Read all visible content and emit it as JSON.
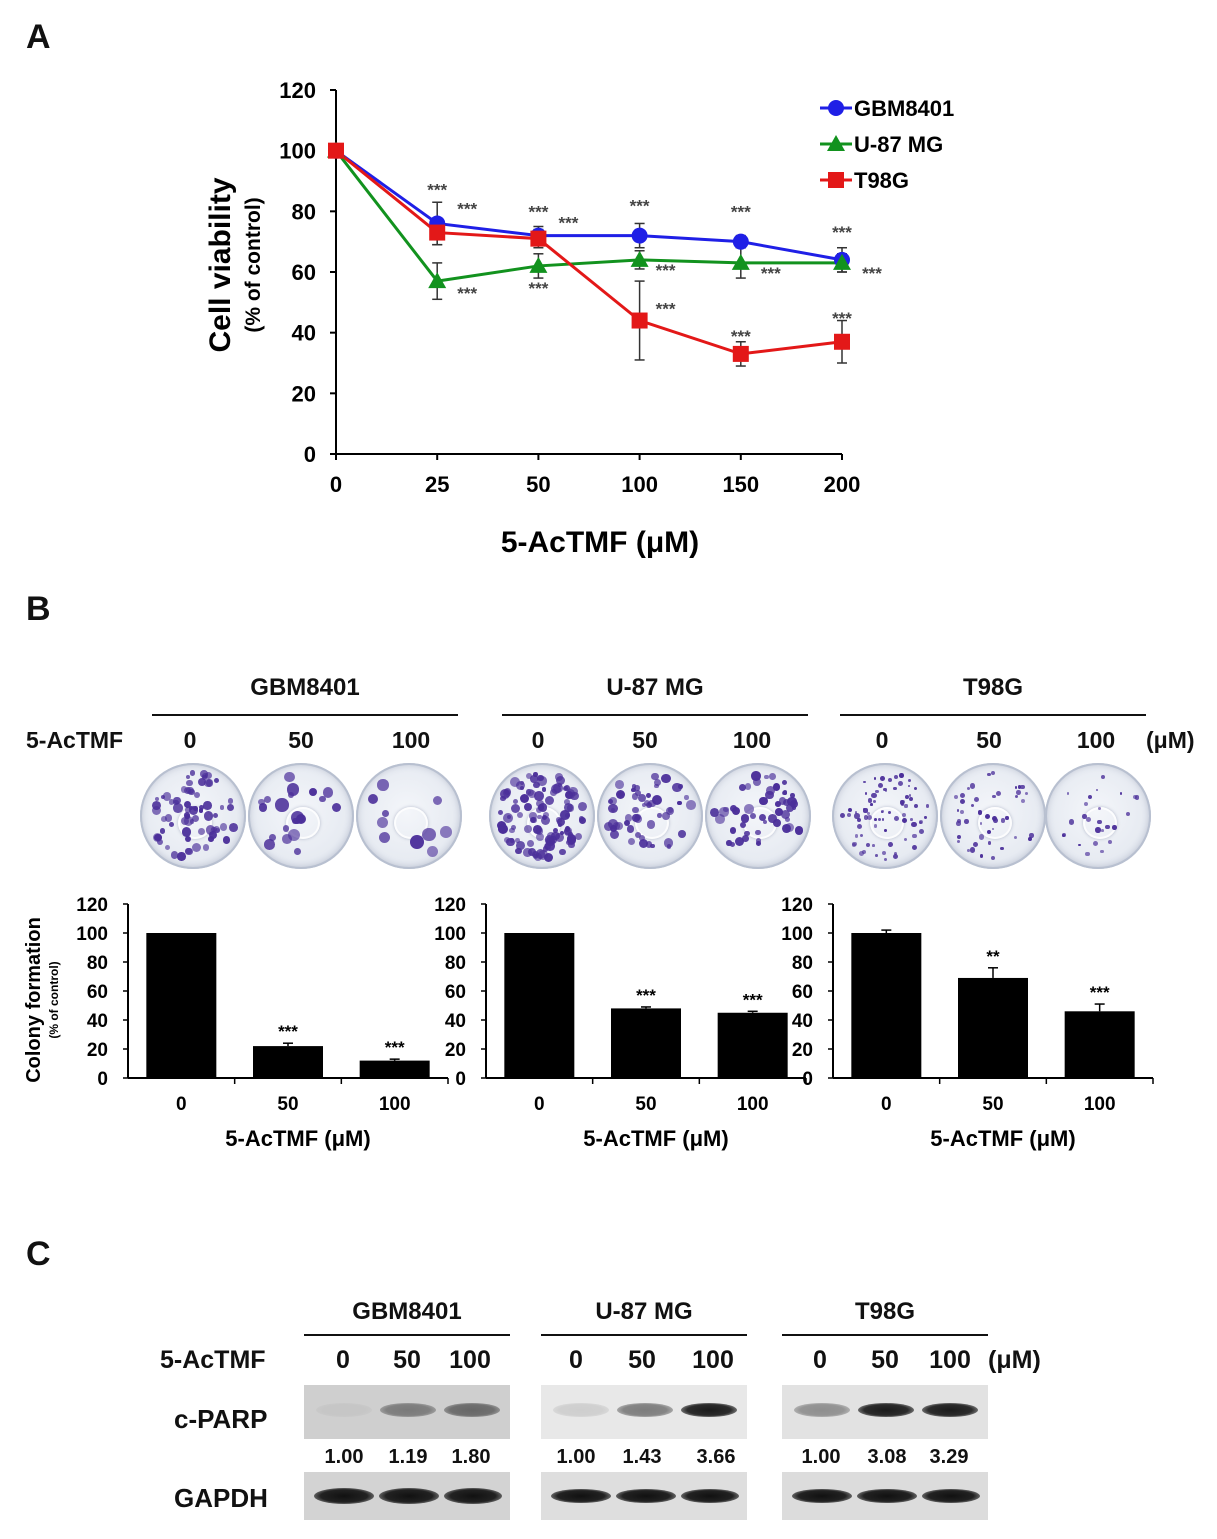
{
  "panel_a": {
    "letter": "A",
    "chart_data": {
      "type": "line",
      "x": [
        0,
        25,
        50,
        100,
        150,
        200
      ],
      "x_tick_labels": [
        "0",
        "25",
        "50",
        "100",
        "150",
        "200"
      ],
      "ylim": [
        0,
        120
      ],
      "y_ticks": [
        "0",
        "20",
        "40",
        "60",
        "80",
        "100",
        "120"
      ],
      "xlabel": "5-AcTMF (μM)",
      "ylabel": "Cell viability",
      "ylabel_sub": "(% of control)",
      "legend_position": "top-right",
      "series": [
        {
          "name": "GBM8401",
          "color": "#1f1fe6",
          "marker": "circle",
          "values": [
            100,
            76,
            72,
            72,
            70,
            64
          ],
          "errors": [
            0,
            7,
            3,
            4,
            2,
            4
          ],
          "sig": [
            "",
            "***",
            "***",
            "***",
            "***",
            "***"
          ]
        },
        {
          "name": "U-87 MG",
          "color": "#12921e",
          "marker": "triangle",
          "values": [
            100,
            57,
            62,
            64,
            63,
            63
          ],
          "errors": [
            0,
            6,
            4,
            3,
            5,
            3
          ],
          "sig": [
            "",
            "***",
            "***",
            "***",
            "***",
            "***"
          ]
        },
        {
          "name": "T98G",
          "color": "#e31818",
          "marker": "square",
          "values": [
            100,
            73,
            71,
            44,
            33,
            37
          ],
          "errors": [
            0,
            4,
            3,
            13,
            4,
            7
          ],
          "sig": [
            "",
            "***",
            "***",
            "***",
            "***",
            "***"
          ]
        }
      ]
    }
  },
  "panel_b": {
    "letter": "B",
    "treatment_label": "5-AcTMF",
    "unit_label": "(μM)",
    "ylabel": "Colony formation",
    "ylabel_sub": "(% of control)",
    "groups": [
      {
        "name": "GBM8401",
        "doses": [
          "0",
          "50",
          "100"
        ]
      },
      {
        "name": "U-87 MG",
        "doses": [
          "0",
          "50",
          "100"
        ]
      },
      {
        "name": "T98G",
        "doses": [
          "0",
          "50",
          "100"
        ]
      }
    ],
    "chart_data": [
      {
        "type": "bar",
        "title": "GBM8401",
        "categories": [
          "0",
          "50",
          "100"
        ],
        "values": [
          100,
          22,
          12
        ],
        "errors": [
          0,
          2,
          1
        ],
        "sig": [
          "",
          "***",
          "***"
        ],
        "ylim": [
          0,
          120
        ],
        "y_ticks": [
          "0",
          "20",
          "40",
          "60",
          "80",
          "100",
          "120"
        ],
        "xlabel": "5-AcTMF (μM)"
      },
      {
        "type": "bar",
        "title": "U-87 MG",
        "categories": [
          "0",
          "50",
          "100"
        ],
        "values": [
          100,
          48,
          45
        ],
        "errors": [
          0,
          1,
          1
        ],
        "sig": [
          "",
          "***",
          "***"
        ],
        "ylim": [
          0,
          120
        ],
        "y_ticks": [
          "0",
          "20",
          "40",
          "60",
          "80",
          "100",
          "120"
        ],
        "xlabel": "5-AcTMF (μM)"
      },
      {
        "type": "bar",
        "title": "T98G",
        "categories": [
          "0",
          "50",
          "100"
        ],
        "values": [
          100,
          69,
          46
        ],
        "errors": [
          2,
          7,
          5
        ],
        "sig": [
          "",
          "**",
          "***"
        ],
        "ylim": [
          0,
          120
        ],
        "y_ticks": [
          "0",
          "20",
          "40",
          "60",
          "80",
          "100",
          "120"
        ],
        "xlabel": "5-AcTMF (μM)"
      }
    ]
  },
  "panel_c": {
    "letter": "C",
    "treatment_label": "5-AcTMF",
    "unit_label": "(μM)",
    "row_labels": {
      "cparp": "c-PARP",
      "gapdh": "GAPDH"
    },
    "groups": [
      {
        "name": "GBM8401",
        "doses": [
          "0",
          "50",
          "100"
        ],
        "ratios": [
          "1.00",
          "1.19",
          "1.80"
        ],
        "cparp_intensity": [
          0.05,
          0.45,
          0.55
        ]
      },
      {
        "name": "U-87 MG",
        "doses": [
          "0",
          "50",
          "100"
        ],
        "ratios": [
          "1.00",
          "1.43",
          "3.66"
        ],
        "cparp_intensity": [
          0.12,
          0.5,
          0.95
        ]
      },
      {
        "name": "T98G",
        "doses": [
          "0",
          "50",
          "100"
        ],
        "ratios": [
          "1.00",
          "3.08",
          "3.29"
        ],
        "cparp_intensity": [
          0.4,
          0.95,
          0.95
        ]
      }
    ]
  }
}
